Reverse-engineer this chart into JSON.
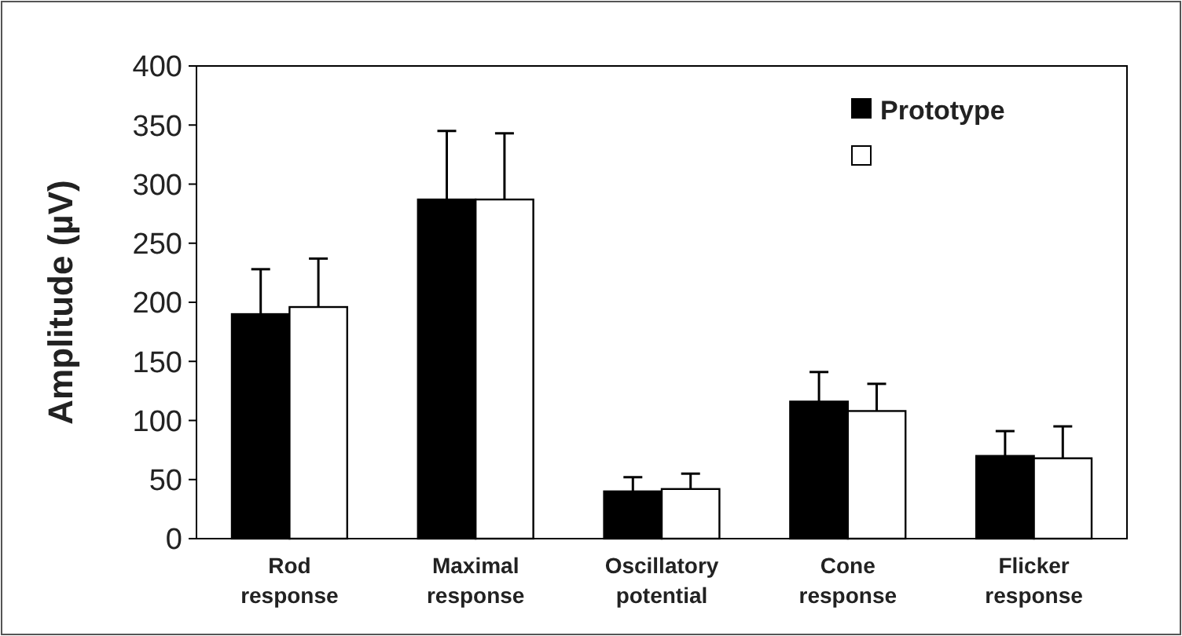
{
  "chart_data": {
    "type": "bar",
    "ylabel": "Amplitude (µV)",
    "categories": [
      "Rod response",
      "Maximal response",
      "Oscillatory potential",
      "Cone response",
      "Flicker response"
    ],
    "series": [
      {
        "name": "Prototype",
        "color": "#000000",
        "values": [
          190,
          287,
          40,
          116,
          70
        ],
        "errors": [
          38,
          58,
          12,
          25,
          21
        ]
      },
      {
        "color": "#ffffff",
        "values": [
          196,
          287,
          42,
          108,
          68
        ],
        "errors": [
          41,
          56,
          13,
          23,
          27
        ]
      }
    ],
    "ylim": [
      0,
      400
    ],
    "yticks": [
      0,
      50,
      100,
      150,
      200,
      250,
      300,
      350,
      400
    ],
    "grid": false,
    "legend": "top right"
  }
}
